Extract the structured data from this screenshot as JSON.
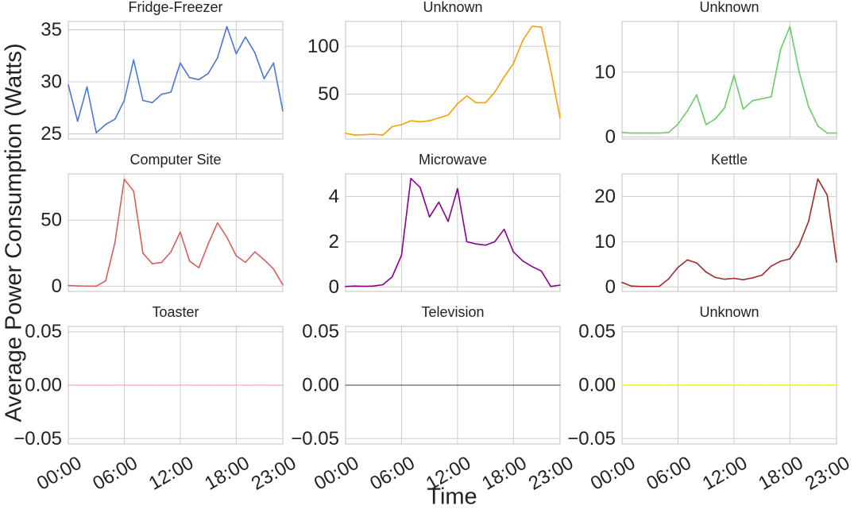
{
  "figure": {
    "ylabel": "Average Power Consumption (Watts)",
    "xlabel": "Time"
  },
  "chart_data": [
    {
      "type": "line",
      "title": "Fridge-Freezer",
      "color": "#4878d0",
      "ylim": [
        24.5,
        35.8
      ],
      "yticks": [
        25,
        30,
        35
      ],
      "ytick_labels": [
        "25",
        "30",
        "35"
      ],
      "x": [
        0,
        1,
        2,
        3,
        4,
        5,
        6,
        7,
        8,
        9,
        10,
        11,
        12,
        13,
        14,
        15,
        16,
        17,
        18,
        19,
        20,
        21,
        22,
        23
      ],
      "y": [
        29.7,
        26.2,
        29.5,
        25.1,
        25.9,
        26.4,
        28.2,
        32.1,
        28.2,
        28.0,
        28.8,
        29.0,
        31.8,
        30.4,
        30.2,
        30.8,
        32.3,
        35.3,
        32.7,
        34.3,
        32.8,
        30.3,
        31.8,
        27.2
      ],
      "xtick_labels": [
        "00:00",
        "06:00",
        "12:00",
        "18:00",
        "23:00"
      ],
      "show_xticks": false
    },
    {
      "type": "line",
      "title": "Unknown",
      "color": "#f5a00a",
      "ylim": [
        3,
        126
      ],
      "yticks": [
        50,
        100
      ],
      "ytick_labels": [
        "50",
        "100"
      ],
      "x": [
        0,
        1,
        2,
        3,
        4,
        5,
        6,
        7,
        8,
        9,
        10,
        11,
        12,
        13,
        14,
        15,
        16,
        17,
        18,
        19,
        20,
        21,
        22,
        23
      ],
      "y": [
        9,
        7,
        7.5,
        8,
        7,
        16,
        18,
        22,
        21,
        22,
        25,
        28,
        40,
        48,
        41,
        41,
        52,
        68,
        82,
        106,
        121,
        120,
        75,
        25
      ],
      "xtick_labels": [
        "00:00",
        "06:00",
        "12:00",
        "18:00",
        "23:00"
      ],
      "show_xticks": false
    },
    {
      "type": "line",
      "title": "Unknown",
      "color": "#6acc64",
      "ylim": [
        -0.3,
        17.8
      ],
      "yticks": [
        0,
        10
      ],
      "ytick_labels": [
        "0",
        "10"
      ],
      "x": [
        0,
        1,
        2,
        3,
        4,
        5,
        6,
        7,
        8,
        9,
        10,
        11,
        12,
        13,
        14,
        15,
        16,
        17,
        18,
        19,
        20,
        21,
        22,
        23
      ],
      "y": [
        0.7,
        0.6,
        0.6,
        0.6,
        0.6,
        0.7,
        2.0,
        4.0,
        6.5,
        1.9,
        2.8,
        4.5,
        9.5,
        4.3,
        5.6,
        5.9,
        6.2,
        13.5,
        17.0,
        10.0,
        4.7,
        1.7,
        0.6,
        0.6
      ],
      "xtick_labels": [
        "00:00",
        "06:00",
        "12:00",
        "18:00",
        "23:00"
      ],
      "show_xticks": false
    },
    {
      "type": "line",
      "title": "Computer Site",
      "color": "#d65f5f",
      "ylim": [
        -4,
        85
      ],
      "yticks": [
        0,
        50
      ],
      "ytick_labels": [
        "0",
        "50"
      ],
      "x": [
        0,
        1,
        2,
        3,
        4,
        5,
        6,
        7,
        8,
        9,
        10,
        11,
        12,
        13,
        14,
        15,
        16,
        17,
        18,
        19,
        20,
        21,
        22,
        23
      ],
      "y": [
        0.5,
        0.2,
        0,
        0,
        4,
        33,
        81,
        72,
        25,
        17,
        18,
        26,
        41,
        19,
        14,
        32,
        48,
        37,
        23,
        18,
        26,
        20,
        13,
        1
      ],
      "xtick_labels": [
        "00:00",
        "06:00",
        "12:00",
        "18:00",
        "23:00"
      ],
      "show_xticks": false
    },
    {
      "type": "line",
      "title": "Microwave",
      "color": "#8b008b",
      "ylim": [
        -0.2,
        5.0
      ],
      "yticks": [
        0,
        2,
        4
      ],
      "ytick_labels": [
        "0",
        "2",
        "4"
      ],
      "x": [
        0,
        1,
        2,
        3,
        4,
        5,
        6,
        7,
        8,
        9,
        10,
        11,
        12,
        13,
        14,
        15,
        16,
        17,
        18,
        19,
        20,
        21,
        22,
        23
      ],
      "y": [
        0.02,
        0.04,
        0.03,
        0.04,
        0.1,
        0.45,
        1.4,
        4.8,
        4.4,
        3.1,
        3.75,
        2.9,
        4.35,
        2.0,
        1.9,
        1.85,
        2.0,
        2.55,
        1.55,
        1.15,
        0.9,
        0.7,
        0.02,
        0.08
      ],
      "xtick_labels": [
        "00:00",
        "06:00",
        "12:00",
        "18:00",
        "23:00"
      ],
      "show_xticks": false
    },
    {
      "type": "line",
      "title": "Kettle",
      "color": "#a52a2a",
      "ylim": [
        -1,
        25
      ],
      "yticks": [
        0,
        10,
        20
      ],
      "ytick_labels": [
        "0",
        "10",
        "20"
      ],
      "x": [
        0,
        1,
        2,
        3,
        4,
        5,
        6,
        7,
        8,
        9,
        10,
        11,
        12,
        13,
        14,
        15,
        16,
        17,
        18,
        19,
        20,
        21,
        22,
        23
      ],
      "y": [
        1.0,
        0.2,
        0.1,
        0.1,
        0.15,
        1.8,
        4.3,
        6.0,
        5.3,
        3.3,
        2.1,
        1.7,
        1.9,
        1.6,
        2.0,
        2.6,
        4.6,
        5.7,
        6.2,
        9.3,
        14.5,
        23.9,
        20.3,
        5.5
      ],
      "xtick_labels": [
        "00:00",
        "06:00",
        "12:00",
        "18:00",
        "23:00"
      ],
      "show_xticks": false
    },
    {
      "type": "line",
      "title": "Toaster",
      "color": "#f4b6c2",
      "ylim": [
        -0.055,
        0.055
      ],
      "yticks": [
        -0.05,
        0,
        0.05
      ],
      "ytick_labels": [
        "−0.05",
        "0.00",
        "0.05"
      ],
      "x": [
        0,
        1,
        2,
        3,
        4,
        5,
        6,
        7,
        8,
        9,
        10,
        11,
        12,
        13,
        14,
        15,
        16,
        17,
        18,
        19,
        20,
        21,
        22,
        23
      ],
      "y": [
        0,
        0,
        0,
        0,
        0,
        0,
        0,
        0,
        0,
        0,
        0,
        0,
        0,
        0,
        0,
        0,
        0,
        0,
        0,
        0,
        0,
        0,
        0,
        0
      ],
      "xtick_labels": [
        "00:00",
        "06:00",
        "12:00",
        "18:00",
        "23:00"
      ],
      "show_xticks": true
    },
    {
      "type": "line",
      "title": "Television",
      "color": "#808080",
      "ylim": [
        -0.055,
        0.055
      ],
      "yticks": [
        -0.05,
        0,
        0.05
      ],
      "ytick_labels": [
        "−0.05",
        "0.00",
        "0.05"
      ],
      "x": [
        0,
        1,
        2,
        3,
        4,
        5,
        6,
        7,
        8,
        9,
        10,
        11,
        12,
        13,
        14,
        15,
        16,
        17,
        18,
        19,
        20,
        21,
        22,
        23
      ],
      "y": [
        0,
        0,
        0,
        0,
        0,
        0,
        0,
        0,
        0,
        0,
        0,
        0,
        0,
        0,
        0,
        0,
        0,
        0,
        0,
        0,
        0,
        0,
        0,
        0
      ],
      "xtick_labels": [
        "00:00",
        "06:00",
        "12:00",
        "18:00",
        "23:00"
      ],
      "show_xticks": true
    },
    {
      "type": "line",
      "title": "Unknown",
      "color": "#f2f200",
      "ylim": [
        -0.055,
        0.055
      ],
      "yticks": [
        -0.05,
        0,
        0.05
      ],
      "ytick_labels": [
        "−0.05",
        "0.00",
        "0.05"
      ],
      "x": [
        0,
        1,
        2,
        3,
        4,
        5,
        6,
        7,
        8,
        9,
        10,
        11,
        12,
        13,
        14,
        15,
        16,
        17,
        18,
        19,
        20,
        21,
        22,
        23
      ],
      "y": [
        0,
        0,
        0,
        0,
        0,
        0,
        0,
        0,
        0,
        0,
        0,
        0,
        0,
        0,
        0,
        0,
        0,
        0,
        0,
        0,
        0,
        0,
        0,
        0
      ],
      "xtick_labels": [
        "00:00",
        "06:00",
        "12:00",
        "18:00",
        "23:00"
      ],
      "show_xticks": true
    }
  ]
}
